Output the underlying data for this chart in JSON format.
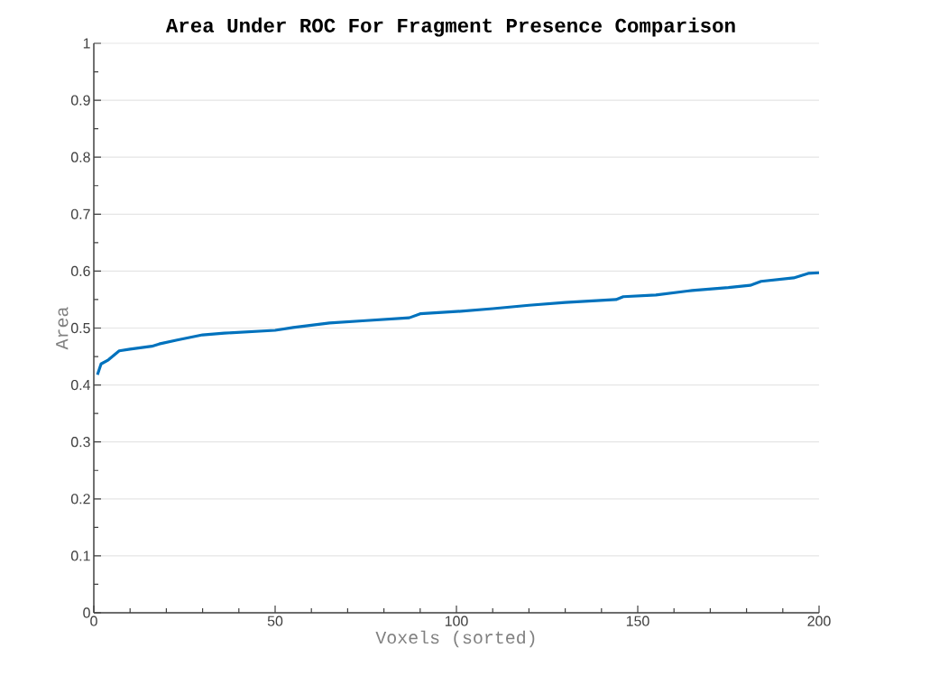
{
  "chart_data": {
    "type": "line",
    "title": "Area Under ROC For Fragment Presence Comparison",
    "xlabel": "Voxels (sorted)",
    "ylabel": "Area",
    "x": [
      1,
      2,
      4,
      7,
      10,
      16,
      18,
      23,
      30,
      36,
      50,
      55,
      65,
      75,
      87,
      90,
      100,
      110,
      120,
      130,
      144,
      146,
      155,
      165,
      175,
      181,
      184,
      193,
      197,
      200
    ],
    "series": [
      {
        "color": "#0072bd",
        "values": [
          0.418,
          0.437,
          0.444,
          0.46,
          0.463,
          0.468,
          0.472,
          0.479,
          0.488,
          0.491,
          0.496,
          0.501,
          0.509,
          0.513,
          0.518,
          0.525,
          0.529,
          0.534,
          0.54,
          0.545,
          0.55,
          0.555,
          0.558,
          0.566,
          0.571,
          0.575,
          0.582,
          0.588,
          0.596,
          0.597
        ]
      }
    ],
    "xlim": [
      0,
      200
    ],
    "ylim": [
      0,
      1
    ],
    "xticks": [
      0,
      50,
      100,
      150,
      200
    ],
    "yticks": [
      0,
      0.1,
      0.2,
      0.3,
      0.4,
      0.5,
      0.6,
      0.7,
      0.8,
      0.9,
      1
    ],
    "grid": "y",
    "marker": "none",
    "line_style": "solid"
  }
}
